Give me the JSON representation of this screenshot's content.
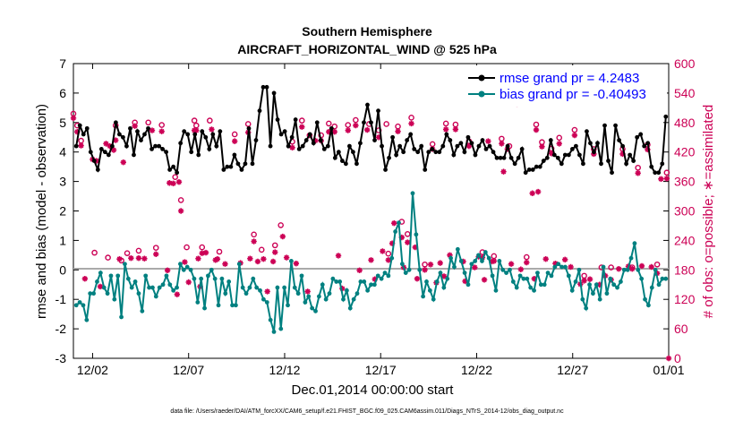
{
  "chart_data": {
    "type": "line",
    "title": "Southern Hemisphere",
    "subtitle": "AIRCRAFT_HORIZONTAL_WIND @ 525 hPa",
    "xlabel": "Dec.01,2014 00:00:00 start",
    "ylabel": "rmse and bias (model - observation)",
    "ylabel_right": "# of obs: o=possible; ∗=assimilated",
    "xlim": [
      0,
      31
    ],
    "ylim": [
      -3,
      7
    ],
    "ylim_right": [
      0,
      600
    ],
    "x_tick_values": [
      1,
      6,
      11,
      16,
      21,
      26,
      31
    ],
    "x_tick_labels": [
      "12/02",
      "12/07",
      "12/12",
      "12/17",
      "12/22",
      "12/27",
      "01/01"
    ],
    "y_ticks": [
      -3,
      -2,
      -1,
      0,
      1,
      2,
      3,
      4,
      5,
      6,
      7
    ],
    "y_ticks_right": [
      0,
      60,
      120,
      180,
      240,
      300,
      360,
      420,
      480,
      540,
      600
    ],
    "grid": false,
    "legend_position": "top-right",
    "footnote": "data file: /Users/raeder/DAI/ATM_forcXX/CAM6_setup/f.e21.FHIST_BGC.f09_025.CAM6assim.011/Diags_NTrS_2014-12/obs_diag_output.nc",
    "colors": {
      "rmse": "#000000",
      "bias": "#008080",
      "obs": "#cc0055",
      "zero_line": "#aaaaaa"
    },
    "series": [
      {
        "name": "rmse grand pr = 4.2483",
        "color": "#000000",
        "values": [
          4.2,
          4.9,
          4.6,
          4.8,
          4.0,
          3.7,
          3.4,
          4.1,
          4.0,
          3.9,
          4.2,
          5.0,
          4.6,
          4.5,
          4.2,
          4.8,
          3.9,
          4.7,
          4.4,
          4.6,
          4.8,
          4.1,
          4.2,
          4.2,
          4.1,
          4.0,
          3.4,
          3.5,
          3.3,
          4.3,
          4.7,
          4.6,
          4.0,
          4.6,
          3.9,
          4.7,
          4.5,
          4.1,
          4.6,
          4.2,
          4.7,
          3.4,
          3.5,
          3.5,
          3.9,
          3.6,
          3.4,
          3.6,
          4.8,
          3.6,
          4.4,
          5.4,
          6.2,
          6.2,
          4.2,
          6.0,
          5.1,
          4.6,
          4.7,
          4.2,
          4.5,
          5.1,
          4.1,
          4.2,
          4.4,
          4.6,
          4.3,
          5.0,
          4.4,
          4.1,
          4.2,
          4.8,
          3.8,
          4.0,
          3.7,
          3.6,
          4.2,
          4.0,
          3.6,
          4.3,
          5.0,
          5.6,
          5.0,
          4.4,
          5.4,
          4.2,
          3.4,
          3.8,
          4.5,
          3.9,
          4.2,
          4.0,
          4.4,
          4.6,
          4.1,
          4.0,
          4.2,
          3.4,
          4.0,
          4.1,
          4.0,
          4.0,
          4.2,
          4.6,
          4.4,
          3.9,
          4.2,
          4.3,
          4.0,
          4.5,
          4.3,
          3.9,
          4.2,
          4.4,
          4.1,
          4.2,
          4.0,
          3.8,
          3.8,
          3.8,
          4.2,
          3.8,
          3.6,
          3.8,
          4.1,
          3.3,
          3.4,
          3.4,
          3.5,
          3.5,
          3.7,
          3.8,
          4.4,
          3.9,
          3.8,
          3.6,
          3.9,
          3.9,
          4.1,
          4.2,
          3.9,
          3.6,
          4.7,
          4.3,
          4.0,
          4.3,
          3.6,
          4.9,
          3.7,
          3.3,
          4.9,
          4.4,
          4.2,
          3.6,
          3.9,
          3.7,
          4.5,
          4.6,
          4.2,
          4.3,
          3.5,
          3.3,
          3.3,
          3.6,
          5.2
        ]
      },
      {
        "name": "bias grand pr = -0.40493",
        "color": "#008080",
        "values": [
          -1.2,
          -1.1,
          -1.2,
          -1.7,
          -0.8,
          -0.8,
          -0.4,
          -0.1,
          -0.6,
          -0.8,
          -0.2,
          -1.0,
          -0.2,
          -1.6,
          0.2,
          -0.3,
          -0.6,
          -0.4,
          -0.8,
          -1.4,
          -0.2,
          -0.6,
          -0.6,
          -0.9,
          -0.6,
          -0.5,
          -0.2,
          -0.5,
          -0.7,
          -0.6,
          0.2,
          0.0,
          0.1,
          0.0,
          -0.3,
          -1.1,
          -0.3,
          -1.3,
          -0.2,
          0.0,
          -0.3,
          -1.2,
          -0.3,
          -0.8,
          -0.4,
          -1.2,
          -1.2,
          0.2,
          -0.6,
          -0.8,
          -0.6,
          -0.3,
          -0.6,
          -0.7,
          -1.0,
          -1.1,
          -1.7,
          -2.1,
          -0.6,
          -2.0,
          -0.6,
          -1.2,
          0.3,
          -0.6,
          -0.8,
          -0.2,
          -1.1,
          -0.9,
          -1.3,
          -1.4,
          -0.9,
          -0.5,
          -1.0,
          -0.8,
          -0.3,
          -0.4,
          -0.4,
          -1.0,
          -0.7,
          -1.3,
          -1.0,
          -0.8,
          -0.4,
          -0.4,
          -0.7,
          -0.5,
          -0.5,
          -0.2,
          -0.3,
          -0.1,
          -0.2,
          0.4,
          1.3,
          1.6,
          0.2,
          -0.1,
          0.0,
          2.6,
          1.2,
          0.0,
          -0.9,
          -0.4,
          -0.7,
          -1.0,
          -0.4,
          -0.1,
          -0.6,
          -0.3,
          0.4,
          0.1,
          0.7,
          0.3,
          -0.1,
          -0.5,
          0.2,
          0.3,
          0.5,
          0.3,
          0.6,
          0.4,
          -0.2,
          -0.7,
          0.3,
          0.0,
          -0.1,
          0.0,
          -0.4,
          -0.6,
          -0.2,
          -0.3,
          -0.3,
          -0.6,
          -0.7,
          -0.1,
          -0.5,
          -0.5,
          -0.1,
          -0.2,
          0.1,
          0.2,
          0.1,
          0.1,
          -0.2,
          -0.7,
          -0.4,
          0.0,
          -1.0,
          -1.3,
          -0.5,
          -0.8,
          -0.5,
          -1.0,
          0.1,
          -0.8,
          -0.3,
          -0.5,
          -0.6,
          -0.4,
          0.0,
          0.0,
          0.4,
          0.9,
          0.0,
          -0.3,
          -1.0,
          -1.2,
          -0.6,
          0.0,
          -0.5,
          -0.3,
          -0.3
        ]
      }
    ],
    "obs_possible": [
      [
        0.0,
        498
      ],
      [
        0.2,
        474
      ],
      [
        0.4,
        443
      ],
      [
        1.1,
        215
      ],
      [
        1.8,
        205
      ],
      [
        2.2,
        474
      ],
      [
        2.5,
        199
      ],
      [
        2.8,
        214
      ],
      [
        3.2,
        480
      ],
      [
        3.4,
        219
      ],
      [
        3.9,
        480
      ],
      [
        4.3,
        225
      ],
      [
        4.6,
        475
      ],
      [
        5.3,
        369
      ],
      [
        5.6,
        322
      ],
      [
        5.9,
        226
      ],
      [
        6.3,
        484
      ],
      [
        6.4,
        474
      ],
      [
        6.7,
        226
      ],
      [
        7.1,
        484
      ],
      [
        7.6,
        217
      ],
      [
        8.4,
        456
      ],
      [
        9.1,
        477
      ],
      [
        9.4,
        252
      ],
      [
        9.8,
        221
      ],
      [
        10.5,
        230
      ],
      [
        10.8,
        271
      ],
      [
        11.4,
        441
      ],
      [
        11.9,
        484
      ],
      [
        12.3,
        454
      ],
      [
        12.9,
        454
      ],
      [
        13.3,
        478
      ],
      [
        13.6,
        472
      ],
      [
        14.3,
        475
      ],
      [
        14.7,
        485
      ],
      [
        15.4,
        477
      ],
      [
        15.9,
        464
      ],
      [
        16.3,
        477
      ],
      [
        16.4,
        213
      ],
      [
        16.9,
        472
      ],
      [
        17.1,
        278
      ],
      [
        17.4,
        253
      ],
      [
        17.6,
        490
      ],
      [
        18.3,
        191
      ],
      [
        18.7,
        436
      ],
      [
        19.4,
        478
      ],
      [
        19.9,
        476
      ],
      [
        20.6,
        442
      ],
      [
        21.3,
        216
      ],
      [
        21.9,
        208
      ],
      [
        22.3,
        447
      ],
      [
        22.7,
        432
      ],
      [
        23.6,
        206
      ],
      [
        24.1,
        476
      ],
      [
        24.4,
        440
      ],
      [
        24.9,
        427
      ],
      [
        25.3,
        449
      ],
      [
        26.1,
        465
      ],
      [
        26.6,
        168
      ],
      [
        27.1,
        426
      ],
      [
        27.5,
        185
      ],
      [
        28.0,
        185
      ],
      [
        28.6,
        426
      ],
      [
        29.1,
        185
      ],
      [
        29.4,
        388
      ],
      [
        29.9,
        435
      ],
      [
        30.4,
        191
      ],
      [
        30.9,
        378
      ]
    ],
    "obs_assimilated": [
      [
        0.0,
        489
      ],
      [
        0.2,
        461
      ],
      [
        0.4,
        433
      ],
      [
        0.6,
        162
      ],
      [
        1.0,
        405
      ],
      [
        1.2,
        402
      ],
      [
        1.4,
        146
      ],
      [
        1.7,
        437
      ],
      [
        1.9,
        432
      ],
      [
        2.1,
        424
      ],
      [
        2.2,
        444
      ],
      [
        2.4,
        202
      ],
      [
        2.6,
        399
      ],
      [
        3.0,
        204
      ],
      [
        3.2,
        473
      ],
      [
        3.4,
        204
      ],
      [
        3.7,
        203
      ],
      [
        4.1,
        464
      ],
      [
        4.3,
        212
      ],
      [
        4.6,
        462
      ],
      [
        4.9,
        179
      ],
      [
        5.0,
        357
      ],
      [
        5.2,
        356
      ],
      [
        5.4,
        130
      ],
      [
        5.5,
        359
      ],
      [
        5.6,
        300
      ],
      [
        5.8,
        196
      ],
      [
        6.0,
        155
      ],
      [
        6.3,
        464
      ],
      [
        6.4,
        464
      ],
      [
        6.5,
        203
      ],
      [
        6.6,
        146
      ],
      [
        6.7,
        214
      ],
      [
        6.9,
        215
      ],
      [
        7.2,
        466
      ],
      [
        7.4,
        200
      ],
      [
        7.5,
        202
      ],
      [
        7.9,
        192
      ],
      [
        8.4,
        442
      ],
      [
        8.7,
        194
      ],
      [
        9.1,
        460
      ],
      [
        9.2,
        203
      ],
      [
        9.4,
        238
      ],
      [
        9.6,
        197
      ],
      [
        9.9,
        202
      ],
      [
        10.1,
        136
      ],
      [
        10.4,
        197
      ],
      [
        10.5,
        216
      ],
      [
        10.9,
        248
      ],
      [
        11.1,
        205
      ],
      [
        11.4,
        429
      ],
      [
        11.6,
        193
      ],
      [
        11.9,
        471
      ],
      [
        12.2,
        136
      ],
      [
        12.6,
        443
      ],
      [
        12.9,
        443
      ],
      [
        13.3,
        461
      ],
      [
        13.6,
        461
      ],
      [
        13.8,
        209
      ],
      [
        14.0,
        142
      ],
      [
        14.3,
        464
      ],
      [
        14.7,
        474
      ],
      [
        14.9,
        179
      ],
      [
        15.3,
        465
      ],
      [
        15.5,
        200
      ],
      [
        15.7,
        161
      ],
      [
        15.9,
        450
      ],
      [
        16.1,
        218
      ],
      [
        16.4,
        200
      ],
      [
        16.6,
        234
      ],
      [
        16.7,
        275
      ],
      [
        16.9,
        462
      ],
      [
        17.1,
        246
      ],
      [
        17.2,
        185
      ],
      [
        17.4,
        236
      ],
      [
        17.6,
        478
      ],
      [
        17.8,
        226
      ],
      [
        17.9,
        162
      ],
      [
        18.3,
        180
      ],
      [
        18.6,
        191
      ],
      [
        18.7,
        426
      ],
      [
        18.9,
        154
      ],
      [
        19.1,
        194
      ],
      [
        19.3,
        167
      ],
      [
        19.4,
        466
      ],
      [
        19.6,
        210
      ],
      [
        19.9,
        466
      ],
      [
        20.3,
        197
      ],
      [
        20.4,
        157
      ],
      [
        20.6,
        432
      ],
      [
        20.9,
        185
      ],
      [
        21.1,
        207
      ],
      [
        21.3,
        205
      ],
      [
        21.4,
        160
      ],
      [
        21.6,
        442
      ],
      [
        21.8,
        197
      ],
      [
        21.9,
        198
      ],
      [
        22.3,
        437
      ],
      [
        22.4,
        380
      ],
      [
        22.6,
        426
      ],
      [
        22.8,
        192
      ],
      [
        23.1,
        518
      ],
      [
        23.3,
        181
      ],
      [
        23.6,
        195
      ],
      [
        23.9,
        336
      ],
      [
        24.0,
        162
      ],
      [
        24.1,
        465
      ],
      [
        24.2,
        339
      ],
      [
        24.4,
        431
      ],
      [
        24.6,
        202
      ],
      [
        24.9,
        417
      ],
      [
        25.1,
        193
      ],
      [
        25.3,
        437
      ],
      [
        25.6,
        201
      ],
      [
        25.9,
        186
      ],
      [
        26.1,
        454
      ],
      [
        26.4,
        151
      ],
      [
        26.6,
        158
      ],
      [
        26.9,
        161
      ],
      [
        27.1,
        416
      ],
      [
        27.4,
        150
      ],
      [
        27.7,
        168
      ],
      [
        28.0,
        160
      ],
      [
        28.4,
        182
      ],
      [
        28.6,
        416
      ],
      [
        28.9,
        187
      ],
      [
        29.1,
        182
      ],
      [
        29.4,
        377
      ],
      [
        29.6,
        188
      ],
      [
        29.9,
        425
      ],
      [
        30.1,
        186
      ],
      [
        30.4,
        173
      ],
      [
        30.6,
        365
      ],
      [
        30.9,
        366
      ],
      [
        31.0,
        0
      ]
    ]
  }
}
